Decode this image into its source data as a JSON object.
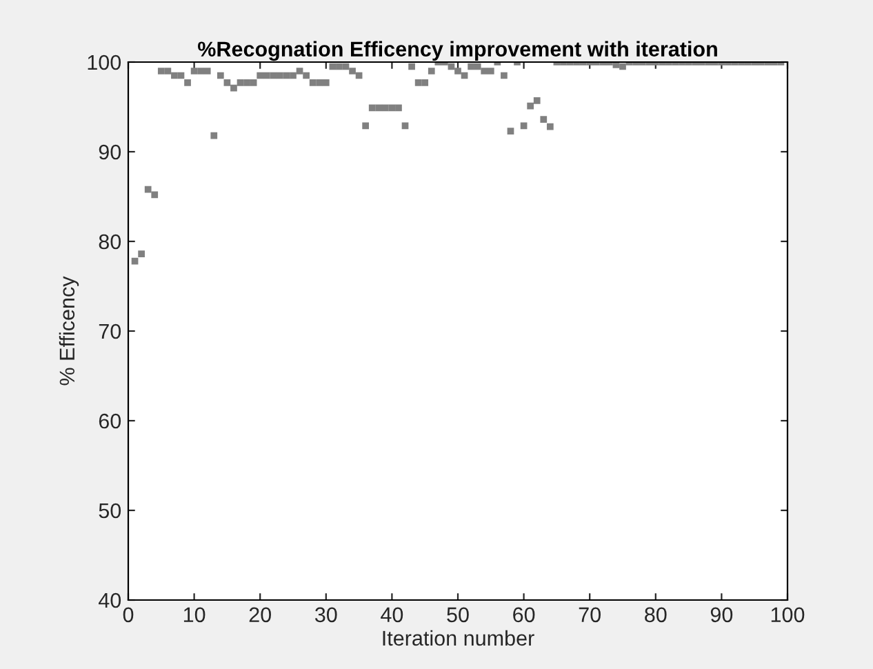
{
  "chart_data": {
    "type": "scatter",
    "title": "%Recognation Efficency improvement with iteration",
    "xlabel": "Iteration number",
    "ylabel": "% Efficency",
    "x": [
      1,
      2,
      3,
      4,
      5,
      6,
      7,
      8,
      9,
      10,
      11,
      12,
      13,
      14,
      15,
      16,
      17,
      18,
      19,
      20,
      21,
      22,
      23,
      24,
      25,
      26,
      27,
      28,
      29,
      30,
      31,
      32,
      33,
      34,
      35,
      36,
      37,
      38,
      39,
      40,
      41,
      42,
      43,
      44,
      45,
      46,
      47,
      48,
      49,
      50,
      51,
      52,
      53,
      54,
      55,
      56,
      57,
      58,
      59,
      60,
      61,
      62,
      63,
      64,
      65,
      66,
      67,
      68,
      69,
      70,
      71,
      72,
      73,
      74,
      75,
      76,
      77,
      78,
      79,
      80,
      81,
      82,
      83,
      84,
      85,
      86,
      87,
      88,
      89,
      90,
      91,
      92,
      93,
      94,
      95,
      96,
      97,
      98,
      99
    ],
    "series": [
      {
        "color": "#808080",
        "values": [
          77.8,
          78.6,
          85.8,
          85.2,
          99,
          99,
          98.5,
          98.5,
          97.7,
          99,
          99,
          99,
          91.8,
          98.5,
          97.7,
          97.1,
          97.7,
          97.7,
          97.7,
          98.5,
          98.5,
          98.5,
          98.5,
          98.5,
          98.5,
          99,
          98.5,
          97.7,
          97.7,
          97.7,
          99.5,
          99.5,
          99.5,
          99,
          98.5,
          92.9,
          94.9,
          94.9,
          94.9,
          94.9,
          94.9,
          92.9,
          99.5,
          97.7,
          97.7,
          99,
          100,
          100,
          99.5,
          99,
          98.5,
          99.5,
          99.5,
          99,
          99,
          100,
          98.5,
          92.3,
          100,
          92.9,
          95.1,
          95.7,
          93.6,
          92.8,
          100,
          100,
          100,
          100,
          100,
          100,
          100,
          100,
          100,
          99.7,
          99.5,
          100,
          100,
          100,
          100,
          100,
          100,
          100,
          100,
          100,
          100,
          100,
          100,
          100,
          100,
          100,
          100,
          100,
          100,
          100,
          100,
          100,
          100,
          100,
          100
        ]
      }
    ],
    "xlim": [
      0,
      100
    ],
    "ylim": [
      40,
      100
    ],
    "xticks": [
      0,
      10,
      20,
      30,
      40,
      50,
      60,
      70,
      80,
      90,
      100
    ],
    "yticks": [
      40,
      50,
      60,
      70,
      80,
      90,
      100
    ],
    "marker": "square",
    "grid": false,
    "legend": false
  }
}
